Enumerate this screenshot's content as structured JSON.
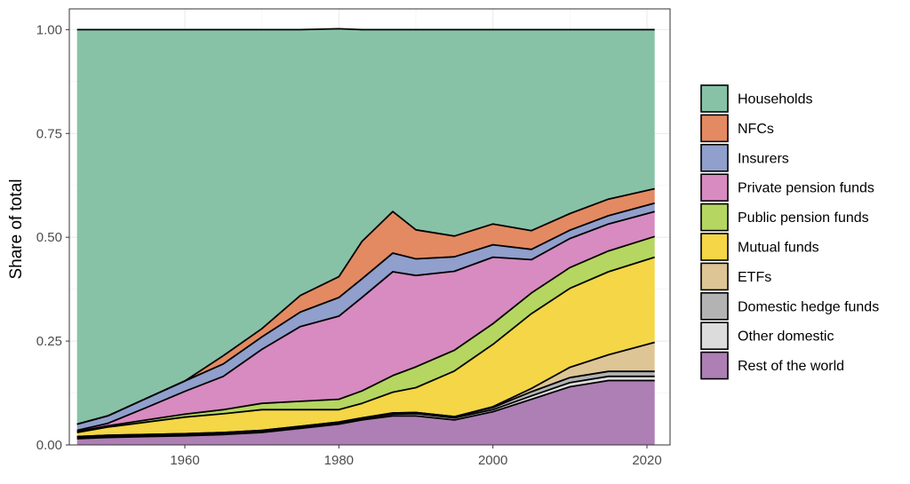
{
  "chart_data": {
    "type": "area",
    "stacked": true,
    "normalized": true,
    "title": "",
    "xlabel": "",
    "ylabel": "Share of total",
    "xlim": [
      1945,
      2023
    ],
    "ylim": [
      0,
      1.05
    ],
    "x_ticks": [
      1960,
      1980,
      2000,
      2020
    ],
    "y_ticks": [
      "0.00",
      "0.25",
      "0.50",
      "0.75",
      "1.00"
    ],
    "grid": true,
    "legend_position": "right",
    "x": [
      1946,
      1950,
      1955,
      1960,
      1965,
      1970,
      1975,
      1980,
      1983,
      1987,
      1990,
      1995,
      2000,
      2005,
      2010,
      2015,
      2021
    ],
    "series": [
      {
        "name": "Rest of the world",
        "color": "#ad7fb5",
        "values": [
          0.015,
          0.018,
          0.02,
          0.022,
          0.025,
          0.03,
          0.04,
          0.05,
          0.06,
          0.07,
          0.07,
          0.06,
          0.08,
          0.11,
          0.14,
          0.155,
          0.155
        ]
      },
      {
        "name": "Other domestic",
        "color": "#dcdcdc",
        "values": [
          0.003,
          0.003,
          0.003,
          0.003,
          0.003,
          0.003,
          0.003,
          0.003,
          0.003,
          0.004,
          0.005,
          0.005,
          0.005,
          0.008,
          0.01,
          0.01,
          0.01
        ]
      },
      {
        "name": "Domestic hedge funds",
        "color": "#b3b3b3",
        "values": [
          0.002,
          0.002,
          0.002,
          0.002,
          0.002,
          0.002,
          0.002,
          0.002,
          0.002,
          0.003,
          0.003,
          0.003,
          0.005,
          0.01,
          0.012,
          0.012,
          0.012
        ]
      },
      {
        "name": "ETFs",
        "color": "#dec595",
        "values": [
          0,
          0,
          0,
          0,
          0,
          0,
          0,
          0,
          0,
          0,
          0,
          0,
          0.002,
          0.008,
          0.025,
          0.04,
          0.07
        ]
      },
      {
        "name": "Mutual funds",
        "color": "#f4d646",
        "values": [
          0.01,
          0.02,
          0.03,
          0.04,
          0.045,
          0.05,
          0.04,
          0.03,
          0.035,
          0.05,
          0.06,
          0.11,
          0.15,
          0.18,
          0.19,
          0.2,
          0.205
        ]
      },
      {
        "name": "Public pension funds",
        "color": "#b5d660",
        "values": [
          0.002,
          0.003,
          0.005,
          0.007,
          0.01,
          0.015,
          0.02,
          0.025,
          0.03,
          0.04,
          0.05,
          0.05,
          0.05,
          0.05,
          0.05,
          0.05,
          0.05
        ]
      },
      {
        "name": "Private pension funds",
        "color": "#d78bc1",
        "values": [
          0.003,
          0.006,
          0.03,
          0.055,
          0.08,
          0.13,
          0.18,
          0.2,
          0.225,
          0.25,
          0.22,
          0.19,
          0.16,
          0.08,
          0.07,
          0.065,
          0.06
        ]
      },
      {
        "name": "Insurers",
        "color": "#909fcb",
        "values": [
          0.015,
          0.018,
          0.022,
          0.025,
          0.03,
          0.03,
          0.035,
          0.045,
          0.045,
          0.045,
          0.04,
          0.035,
          0.03,
          0.025,
          0.02,
          0.02,
          0.02
        ]
      },
      {
        "name": "NFCs",
        "color": "#e38a62",
        "values": [
          0,
          0,
          0,
          0,
          0.02,
          0.02,
          0.04,
          0.05,
          0.09,
          0.1,
          0.07,
          0.05,
          0.05,
          0.045,
          0.04,
          0.04,
          0.035
        ]
      },
      {
        "name": "Households",
        "color": "#87c2a7",
        "values": [
          0.95,
          0.93,
          0.888,
          0.846,
          0.785,
          0.72,
          0.64,
          0.597,
          0.51,
          0.438,
          0.482,
          0.497,
          0.468,
          0.484,
          0.443,
          0.408,
          0.383
        ]
      }
    ]
  }
}
